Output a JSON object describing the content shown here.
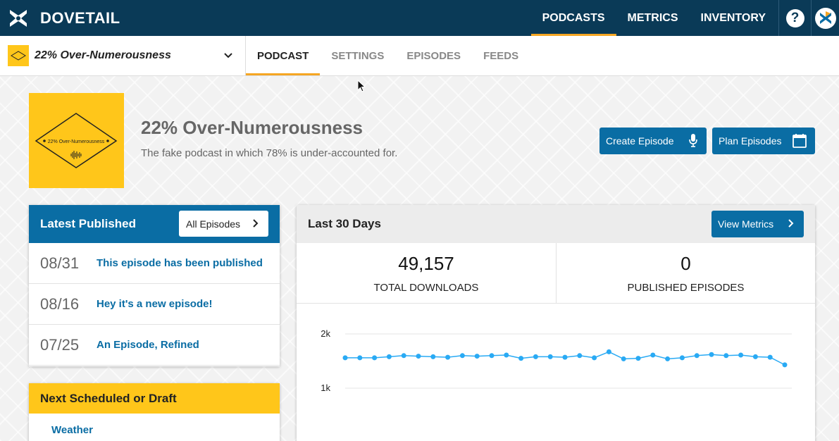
{
  "app": {
    "brand": "DOVETAIL",
    "top_nav": [
      {
        "label": "PODCASTS",
        "active": true
      },
      {
        "label": "METRICS",
        "active": false
      },
      {
        "label": "INVENTORY",
        "active": false
      }
    ],
    "help_label": "?",
    "accent_color": "#f5a623",
    "primary_color": "#0a6da4",
    "topbar_color": "#0a3a57"
  },
  "subnav": {
    "podcast_name": "22% Over-Numerousness",
    "tabs": [
      {
        "label": "PODCAST",
        "active": true
      },
      {
        "label": "SETTINGS",
        "active": false
      },
      {
        "label": "EPISODES",
        "active": false
      },
      {
        "label": "FEEDS",
        "active": false
      }
    ]
  },
  "podcast": {
    "art_text": "22% Over-Numerousness",
    "title": "22% Over-Numerousness",
    "description": "The fake podcast in which 78% is under-accounted for.",
    "create_episode_label": "Create Episode",
    "plan_episodes_label": "Plan Episodes"
  },
  "latest_published": {
    "title": "Latest Published",
    "all_episodes_label": "All Episodes",
    "episodes": [
      {
        "date": "08/31",
        "title": "This episode has been published"
      },
      {
        "date": "08/16",
        "title": "Hey it's a new episode!"
      },
      {
        "date": "07/25",
        "title": "An Episode, Refined"
      }
    ]
  },
  "next_scheduled": {
    "title": "Next Scheduled or Draft",
    "items": [
      "Weather"
    ]
  },
  "metrics": {
    "title": "Last 30 Days",
    "view_metrics_label": "View Metrics",
    "total_downloads_value": "49,157",
    "total_downloads_label": "TOTAL DOWNLOADS",
    "published_episodes_value": "0",
    "published_episodes_label": "PUBLISHED EPISODES"
  },
  "chart_data": {
    "type": "line",
    "title": "",
    "xlabel": "",
    "ylabel": "",
    "ylim": [
      0,
      2000
    ],
    "yticks": [
      {
        "value": 2000,
        "label": "2k"
      },
      {
        "value": 1000,
        "label": "1k"
      }
    ],
    "grid": true,
    "series": [
      {
        "color": "#29aaf4",
        "values": [
          1560,
          1560,
          1560,
          1580,
          1600,
          1590,
          1580,
          1570,
          1600,
          1590,
          1600,
          1610,
          1550,
          1580,
          1580,
          1570,
          1600,
          1560,
          1670,
          1540,
          1550,
          1610,
          1540,
          1560,
          1600,
          1620,
          1600,
          1610,
          1580,
          1570,
          1430
        ]
      }
    ]
  }
}
